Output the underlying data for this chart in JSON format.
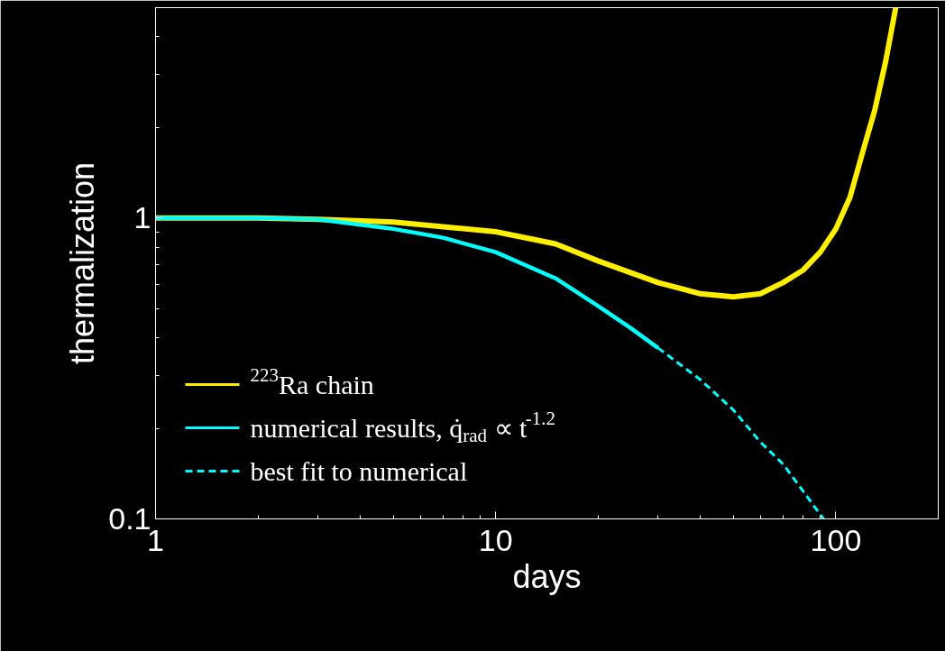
{
  "chart_data": {
    "type": "line",
    "xlabel": "days",
    "ylabel": "thermalization",
    "log": "xy",
    "grid": false,
    "legend": "bottom left",
    "marker": "none",
    "xlim": [
      1,
      200
    ],
    "xticks": [
      1,
      10,
      100
    ],
    "ylim": [
      0.1,
      5
    ],
    "yticks": [
      0.1,
      1
    ],
    "series": [
      {
        "name": "$^{223}$Ra chain",
        "color": "#ffee00",
        "line_style": "solid",
        "x": [
          1,
          2,
          3,
          5,
          10,
          15,
          20,
          30,
          40,
          50,
          60,
          70,
          80,
          90,
          100,
          110,
          120,
          130,
          140,
          150
        ],
        "values": [
          1.0,
          1.0,
          0.99,
          0.97,
          0.9,
          0.82,
          0.72,
          0.61,
          0.56,
          0.547,
          0.56,
          0.61,
          0.67,
          0.77,
          0.92,
          1.17,
          1.66,
          2.27,
          3.3,
          5.0
        ]
      },
      {
        "name": "numerical results, q̇$_{rad}$ ∝ t$^{-1.2}$",
        "color": "#00ffff",
        "line_style": "solid",
        "x": [
          1,
          2,
          3,
          5,
          7,
          10,
          15,
          20,
          25,
          30
        ],
        "values": [
          1.0,
          1.0,
          0.99,
          0.92,
          0.86,
          0.77,
          0.63,
          0.51,
          0.43,
          0.37
        ]
      },
      {
        "name": "best fit to numerical",
        "color": "#00ffff",
        "line_style": "dashed",
        "x": [
          30,
          40,
          50,
          60,
          70,
          80,
          92
        ],
        "values": [
          0.37,
          0.29,
          0.23,
          0.18,
          0.152,
          0.124,
          0.1
        ]
      }
    ]
  }
}
